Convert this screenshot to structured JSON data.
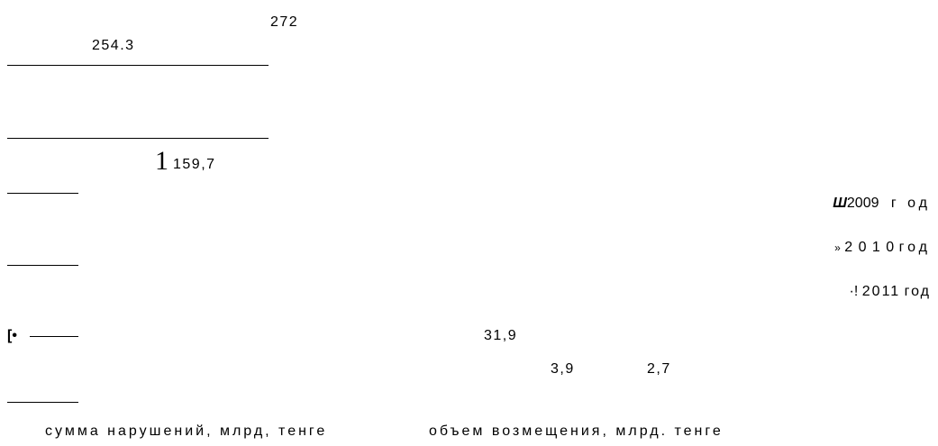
{
  "chart_data": {
    "type": "bar",
    "categories": [
      "сумма нарушений, млрд, тенге",
      "объем возмещения, млрд. тенге"
    ],
    "series": [
      {
        "name": "2009 год",
        "values": [
          254.3,
          3.9
        ]
      },
      {
        "name": "2010 год",
        "values": [
          272,
          2.7
        ]
      },
      {
        "name": "2011 год",
        "values": [
          159.7,
          31.9
        ]
      }
    ],
    "value_labels": {
      "v254": "254.3",
      "v272": "272",
      "v159_lead": "1",
      "v159_rest": "159,7",
      "v31": "31,9",
      "v3": "3,9",
      "v2": "2,7"
    },
    "legend": {
      "position": "right",
      "items": [
        {
          "marker": "Ш",
          "year": "2009",
          "word": "г од"
        },
        {
          "marker": "»",
          "year": "2 0 1 0",
          "word": "год"
        },
        {
          "marker": "·!",
          "year": "2011",
          "word": "год"
        }
      ]
    },
    "left_marker": "[•"
  }
}
